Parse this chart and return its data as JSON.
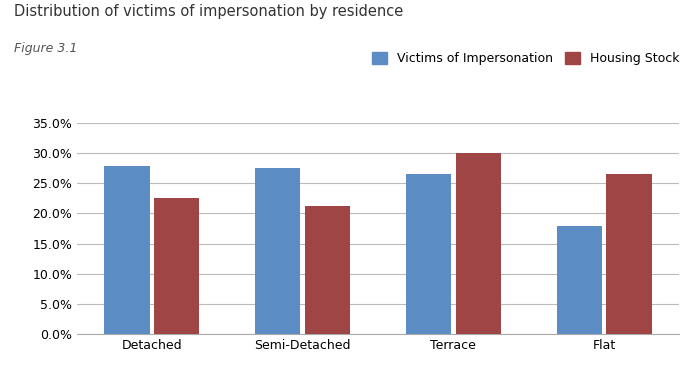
{
  "title": "Distribution of victims of impersonation by residence",
  "subtitle": "Figure 3.1",
  "categories": [
    "Detached",
    "Semi-Detached",
    "Terrace",
    "Flat"
  ],
  "victims_of_impersonation": [
    0.278,
    0.275,
    0.266,
    0.179
  ],
  "housing_stock": [
    0.225,
    0.212,
    0.3,
    0.265
  ],
  "bar_color_blue": "#5B8DC4",
  "bar_color_red": "#A04545",
  "legend_labels": [
    "Victims of Impersonation",
    "Housing Stock"
  ],
  "ylim": [
    0,
    0.35
  ],
  "yticks": [
    0.0,
    0.05,
    0.1,
    0.15,
    0.2,
    0.25,
    0.3,
    0.35
  ],
  "background_color": "#ffffff",
  "title_fontsize": 10.5,
  "subtitle_fontsize": 9,
  "tick_fontsize": 9,
  "legend_fontsize": 9,
  "title_color": "#333333",
  "subtitle_color": "#555555",
  "grid_color": "#BBBBBB",
  "spine_color": "#AAAAAA"
}
